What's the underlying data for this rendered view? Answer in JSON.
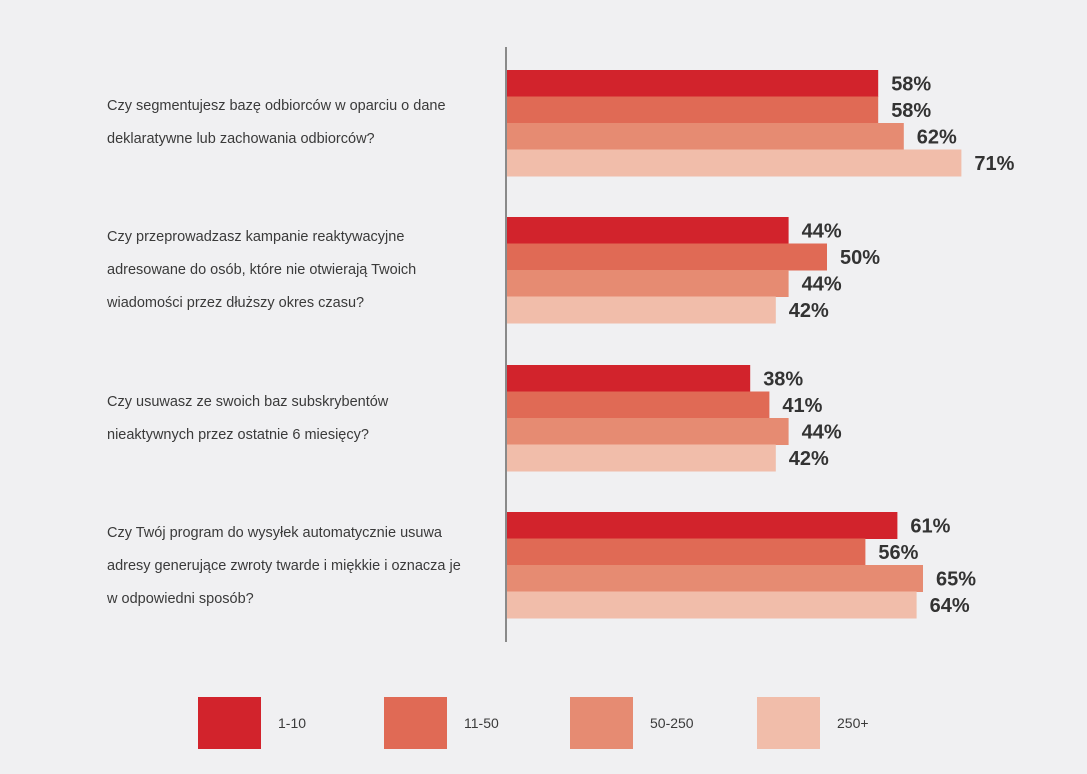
{
  "chart_data": {
    "type": "bar",
    "orientation": "horizontal",
    "xlim": [
      0,
      100
    ],
    "value_suffix": "%",
    "categories": [
      [
        "Czy segmentujesz bazę odbiorców w oparciu o dane",
        "deklaratywne lub zachowania odbiorców?"
      ],
      [
        "Czy przeprowadzasz kampanie reaktywacyjne",
        "adresowane do osób, które nie otwierają Twoich",
        "wiadomości przez dłuższy okres czasu?"
      ],
      [
        "Czy usuwasz ze swoich baz subskrybentów",
        "nieaktywnych przez ostatnie 6 miesięcy?"
      ],
      [
        "Czy Twój program do wysyłek automatycznie usuwa",
        "adresy generujące zwroty twarde i miękkie i oznacza je",
        "w odpowiedni sposób?"
      ]
    ],
    "series": [
      {
        "name": "1-10",
        "color": "#d2232c",
        "values": [
          58,
          44,
          38,
          61
        ]
      },
      {
        "name": "11-50",
        "color": "#e06a55",
        "values": [
          58,
          50,
          41,
          56
        ]
      },
      {
        "name": "50-250",
        "color": "#e68b72",
        "values": [
          62,
          44,
          44,
          65
        ]
      },
      {
        "name": "250+",
        "color": "#f1bdaa",
        "values": [
          71,
          42,
          42,
          64
        ]
      }
    ],
    "legend_position": "bottom",
    "gridlines": false
  }
}
